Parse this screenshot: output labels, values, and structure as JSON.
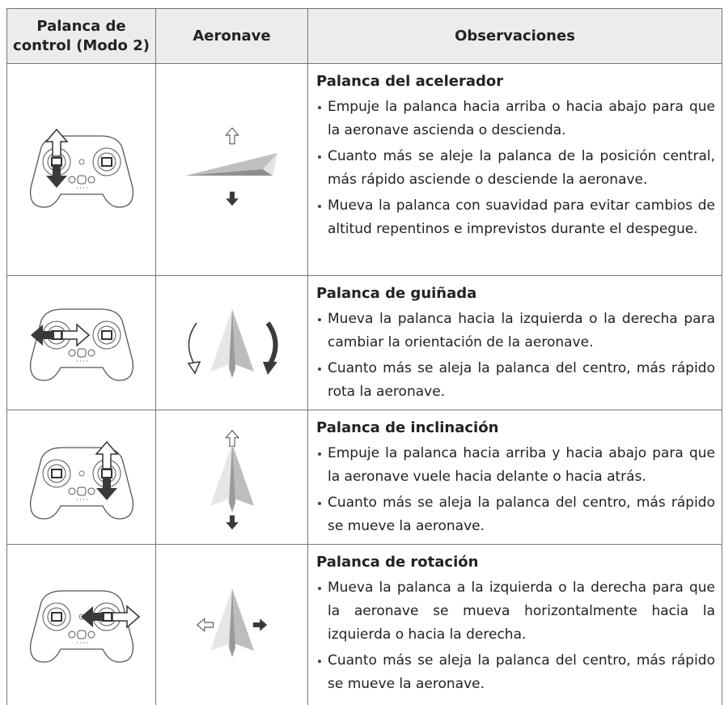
{
  "table": {
    "headers": [
      "Palanca de control (Modo 2)",
      "Aeronave",
      "Observaciones"
    ],
    "rows": [
      {
        "title": "Palanca del acelerador",
        "bullets": [
          "Empuje la palanca hacia arriba o hacia abajo para que la aeronave ascienda o descienda.",
          "Cuanto más se aleje la palanca de la posición central, más rápido asciende o desciende la aeronave.",
          "Mueva la palanca con suavidad para evitar cambios de altitud repentinos e imprevistos durante el despegue."
        ]
      },
      {
        "title": "Palanca de guiñada",
        "bullets": [
          "Mueva la palanca hacia la izquierda o la derecha para cambiar la orientación de la aeronave.",
          "Cuanto más se aleja la palanca del centro, más rápido rota la aeronave."
        ]
      },
      {
        "title": "Palanca de inclinación",
        "bullets": [
          "Empuje la palanca hacia arriba y hacia abajo para que la aeronave vuele hacia delante o hacia atrás.",
          "Cuanto más se aleja la palanca del centro, más rápido se mueve la aeronave."
        ]
      },
      {
        "title": "Palanca de rotación",
        "bullets": [
          "Mueva la palanca a la izquierda o la derecha para que la aeronave se mueva horizontalmente hacia la izquierda o hacia la derecha.",
          "Cuanto más se aleja la palanca del centro, más rápido se mueve la aeronave."
        ]
      }
    ]
  }
}
